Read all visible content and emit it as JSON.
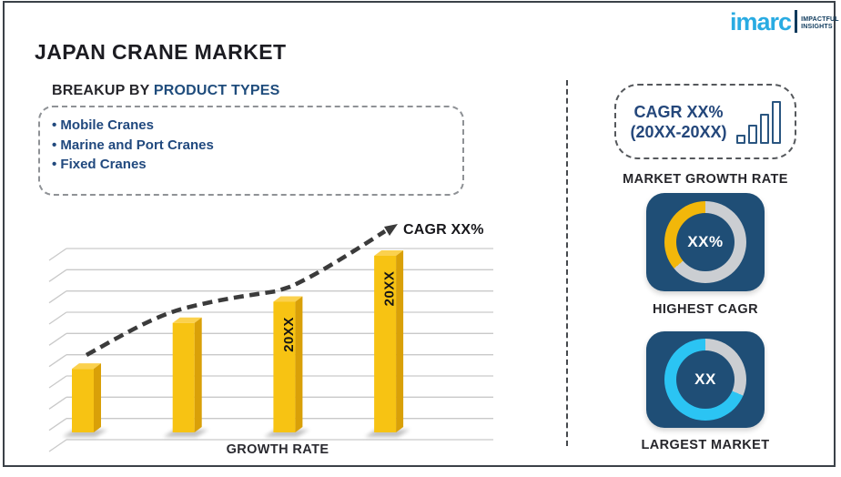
{
  "header": {
    "title": "JAPAN CRANE MARKET"
  },
  "logo": {
    "brand": "imarc",
    "tagline": [
      "IMPACTFUL",
      "INSIGHTS"
    ],
    "brand_color": "#29ABE2"
  },
  "breakup": {
    "prefix": "BREAKUP BY",
    "highlight": "PRODUCT TYPES",
    "items": [
      "Mobile Cranes",
      "Marine and Port Cranes",
      "Fixed Cranes"
    ]
  },
  "chart_data": {
    "type": "bar",
    "title": "",
    "xlabel": "GROWTH RATE",
    "ylabel": "",
    "bar_labels": [
      "",
      "",
      "20XX",
      "20XX"
    ],
    "values": [
      36,
      62,
      74,
      100
    ],
    "value_scale": "relative height %, value axis unlabeled",
    "gridlines": 10,
    "legend": "none",
    "trend_label": "CAGR XX%",
    "trend_style": "dashed rising arrow"
  },
  "sidebar": {
    "pill": {
      "line1": "CAGR XX%",
      "line2": "(20XX-20XX)",
      "icon": "bar-chart-icon",
      "icon_bar_heights": [
        10,
        21,
        33,
        47
      ]
    },
    "growth_label": "MARKET GROWTH RATE",
    "highest_cagr": {
      "value": "XX%",
      "label": "HIGHEST CAGR",
      "highlight_sweep_deg": 130,
      "highlight_color": "#F2B70A"
    },
    "largest_market": {
      "value": "XX",
      "label": "LARGEST MARKET",
      "highlight_sweep_deg": 247,
      "highlight_color": "#2BC4F3"
    }
  },
  "colors": {
    "tile_navy": "#1F4E76",
    "text_navy": "#21497E",
    "ring_gray": "#CBCED2",
    "gold_front": "#F7C313",
    "gold_top": "#FBD14E",
    "gold_side": "#D9A008",
    "trend": "#3B3B3B",
    "gridline": "#C9C9C9",
    "frame": "#3B4148",
    "brand_cyan": "#29ABE2"
  }
}
